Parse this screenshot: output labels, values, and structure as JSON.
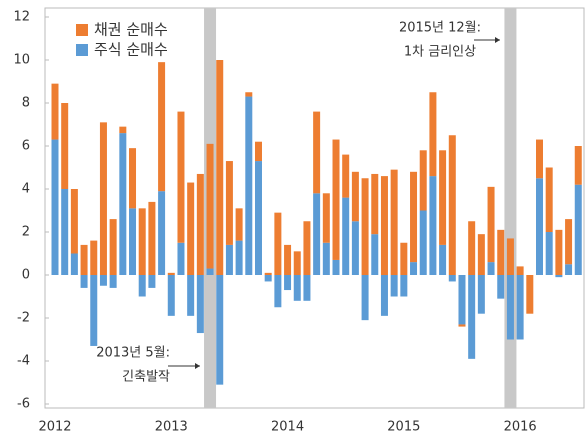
{
  "chart_data": {
    "type": "bar",
    "stacked": true,
    "categories": [
      "2012",
      null,
      null,
      null,
      null,
      null,
      null,
      null,
      null,
      null,
      null,
      null,
      "2013",
      null,
      null,
      null,
      null,
      null,
      null,
      null,
      null,
      null,
      null,
      null,
      "2014",
      null,
      null,
      null,
      null,
      null,
      null,
      null,
      null,
      null,
      null,
      null,
      "2015",
      null,
      null,
      null,
      null,
      null,
      null,
      null,
      null,
      null,
      null,
      null,
      "2016",
      null,
      null,
      null,
      null,
      null,
      null
    ],
    "series": [
      {
        "name": "주식 순매수",
        "color": "#5b9bd5",
        "values": [
          6.3,
          4.0,
          1.0,
          -0.6,
          -3.3,
          -0.5,
          -0.6,
          6.6,
          3.1,
          -1.0,
          -0.6,
          3.9,
          -1.9,
          1.5,
          -1.9,
          -2.7,
          0.3,
          -5.1,
          1.4,
          1.6,
          8.3,
          5.3,
          -0.3,
          -1.5,
          -0.7,
          -1.2,
          -1.2,
          3.8,
          1.5,
          0.7,
          3.6,
          2.5,
          -2.1,
          1.9,
          -1.9,
          -1.0,
          -1.0,
          0.6,
          3.0,
          4.6,
          1.4,
          -0.3,
          -2.3,
          -3.9,
          -1.8,
          0.6,
          -1.1,
          -3.0,
          -3.0,
          0,
          4.5,
          2.0,
          -0.1,
          0.5,
          4.2
        ]
      },
      {
        "name": "채권 순매수",
        "color": "#ed7d31",
        "values": [
          2.6,
          4.0,
          3.0,
          1.4,
          1.6,
          7.1,
          2.6,
          0.3,
          2.8,
          3.1,
          3.4,
          6.0,
          0.1,
          6.1,
          4.3,
          4.7,
          5.8,
          10.0,
          3.9,
          1.5,
          0.2,
          0.9,
          0.1,
          2.9,
          1.4,
          1.1,
          2.5,
          3.8,
          2.3,
          5.6,
          2.0,
          2.3,
          4.5,
          2.8,
          4.6,
          4.9,
          1.5,
          4.2,
          2.8,
          3.9,
          4.4,
          6.5,
          -0.1,
          2.5,
          1.9,
          3.5,
          2.1,
          1.7,
          0.4,
          -1.8,
          1.8,
          3.0,
          2.1,
          2.1,
          1.8
        ]
      }
    ],
    "legend_order": [
      1,
      0
    ],
    "ylim": [
      -6,
      12
    ],
    "yticks": [
      -6,
      -4,
      -2,
      0,
      2,
      4,
      6,
      8,
      10,
      12
    ],
    "highlight_indices": [
      16,
      47
    ],
    "annotations": [
      {
        "lines": [
          "2013년 5월:",
          "긴축발작"
        ]
      },
      {
        "lines": [
          "2015년 12월:",
          "1차 금리인상"
        ]
      }
    ]
  }
}
